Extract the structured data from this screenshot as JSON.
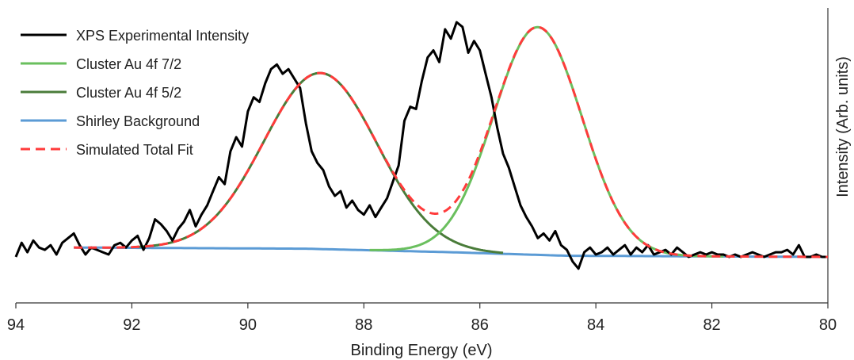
{
  "chart_data": {
    "type": "line",
    "xlabel": "Binding Energy (eV)",
    "ylabel": "Intensity (Arb. units)",
    "xlim": [
      94,
      80
    ],
    "x_reversed": true,
    "x_ticks": [
      "94",
      "92",
      "90",
      "88",
      "86",
      "84",
      "82",
      "80"
    ],
    "y_ticks_shown": false,
    "ylim": [
      -0.05,
      1.05
    ],
    "grid": false,
    "legend_position": "top-left",
    "series": [
      {
        "name": "XPS Experimental Intensity",
        "color": "#000000",
        "style": "solid",
        "x": [
          94.0,
          93.9,
          93.8,
          93.7,
          93.6,
          93.5,
          93.4,
          93.3,
          93.2,
          93.1,
          93.0,
          92.9,
          92.8,
          92.7,
          92.6,
          92.5,
          92.4,
          92.3,
          92.2,
          92.1,
          92.0,
          91.9,
          91.8,
          91.7,
          91.6,
          91.5,
          91.4,
          91.3,
          91.2,
          91.1,
          91.0,
          90.9,
          90.8,
          90.7,
          90.6,
          90.5,
          90.4,
          90.3,
          90.2,
          90.1,
          90.0,
          89.9,
          89.8,
          89.7,
          89.6,
          89.5,
          89.4,
          89.3,
          89.2,
          89.1,
          89.0,
          88.9,
          88.8,
          88.7,
          88.6,
          88.5,
          88.4,
          88.3,
          88.2,
          88.1,
          88.0,
          87.9,
          87.8,
          87.7,
          87.6,
          87.5,
          87.4,
          87.3,
          87.2,
          87.1,
          87.0,
          86.9,
          86.8,
          86.7,
          86.6,
          86.5,
          86.4,
          86.3,
          86.2,
          86.1,
          86.0,
          85.9,
          85.8,
          85.7,
          85.6,
          85.5,
          85.4,
          85.3,
          85.2,
          85.1,
          85.0,
          84.9,
          84.8,
          84.7,
          84.6,
          84.5,
          84.4,
          84.3,
          84.2,
          84.1,
          84.0,
          83.9,
          83.8,
          83.7,
          83.6,
          83.5,
          83.4,
          83.3,
          83.2,
          83.1,
          83.0,
          82.9,
          82.8,
          82.7,
          82.6,
          82.5,
          82.4,
          82.3,
          82.2,
          82.1,
          82.0,
          81.9,
          81.8,
          81.7,
          81.6,
          81.5,
          81.4,
          81.3,
          81.2,
          81.1,
          81.0,
          80.9,
          80.8,
          80.7,
          80.6,
          80.5,
          80.4,
          80.3,
          80.2,
          80.1,
          80.0
        ],
        "y": [
          0.0,
          0.06,
          0.02,
          0.07,
          0.04,
          0.03,
          0.05,
          0.01,
          0.06,
          0.08,
          0.1,
          0.05,
          0.01,
          0.04,
          0.03,
          0.02,
          0.01,
          0.05,
          0.06,
          0.04,
          0.07,
          0.09,
          0.03,
          0.08,
          0.16,
          0.14,
          0.11,
          0.07,
          0.12,
          0.15,
          0.2,
          0.13,
          0.18,
          0.22,
          0.28,
          0.34,
          0.31,
          0.45,
          0.51,
          0.47,
          0.62,
          0.68,
          0.66,
          0.74,
          0.8,
          0.82,
          0.78,
          0.8,
          0.76,
          0.72,
          0.57,
          0.45,
          0.4,
          0.37,
          0.3,
          0.26,
          0.28,
          0.21,
          0.24,
          0.2,
          0.18,
          0.22,
          0.17,
          0.21,
          0.25,
          0.32,
          0.39,
          0.58,
          0.64,
          0.63,
          0.75,
          0.85,
          0.88,
          0.83,
          0.97,
          0.93,
          1.0,
          0.98,
          0.87,
          0.92,
          0.88,
          0.78,
          0.68,
          0.55,
          0.44,
          0.38,
          0.3,
          0.22,
          0.17,
          0.13,
          0.08,
          0.1,
          0.07,
          0.11,
          0.05,
          0.03,
          -0.02,
          -0.05,
          0.02,
          0.04,
          0.01,
          0.02,
          0.04,
          0.01,
          0.03,
          0.05,
          0.01,
          0.04,
          0.02,
          0.05,
          0.01,
          0.02,
          0.03,
          0.01,
          0.04,
          0.02,
          0.0,
          0.01,
          0.02,
          0.01,
          0.02,
          0.01,
          0.01,
          0.0,
          0.01,
          0.0,
          0.01,
          0.02,
          0.01,
          0.0,
          0.01,
          0.02,
          0.02,
          0.03,
          0.01,
          0.05,
          0.0,
          0.0,
          0.01,
          0.0,
          0.0
        ]
      },
      {
        "name": "Cluster Au 4f 7/2",
        "color": "#6abf5e",
        "style": "solid",
        "peak_center": 85.0,
        "peak_height": 0.97,
        "peak_fwhm": 1.8
      },
      {
        "name": "Cluster Au 4f 5/2",
        "color": "#4a7c3a",
        "style": "solid",
        "peak_center": 88.75,
        "peak_height": 0.75,
        "peak_fwhm": 2.3
      },
      {
        "name": "Shirley Background",
        "color": "#5b9bd5",
        "style": "solid",
        "x": [
          93.0,
          89.0,
          86.5,
          84.5,
          80.0
        ],
        "y": [
          0.04,
          0.035,
          0.02,
          0.005,
          0.0
        ]
      },
      {
        "name": "Simulated Total Fit",
        "color": "#ff3b3b",
        "style": "dashed"
      }
    ]
  }
}
